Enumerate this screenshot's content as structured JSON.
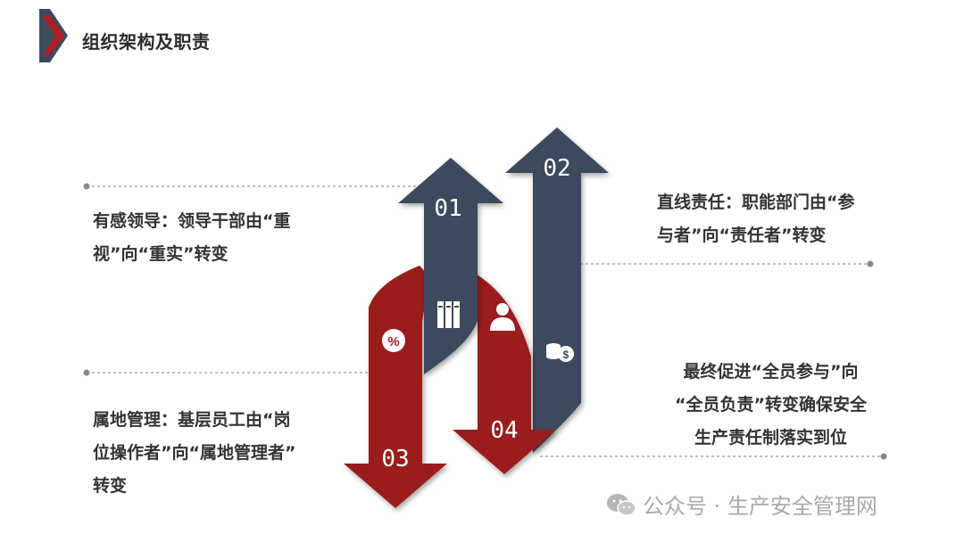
{
  "header": {
    "title": "组织架构及职责"
  },
  "arrows": {
    "labels": [
      "01",
      "02",
      "03",
      "04"
    ],
    "icons": [
      "binders-icon",
      "person-icon",
      "coins-dollar-icon",
      "percent-icon"
    ],
    "colors": {
      "navy": "#3d4a5c",
      "red": "#9b1a1e",
      "dot_line": "#999999"
    }
  },
  "items": {
    "top_left": [
      "有感领导：领导干部由“重",
      "视”向“重实”转变"
    ],
    "top_right": [
      "直线责任：职能部门由“参",
      "与者”向“责任者”转变"
    ],
    "bottom_left": [
      "属地管理：基层员工由“岗",
      "位操作者”向“属地管理者”",
      "转变"
    ],
    "bottom_right": [
      "最终促进“全员参与”向",
      "“全员负责”转变确保安全",
      "生产责任制落实到位"
    ]
  },
  "watermark": {
    "text": "公众号 · 生产安全管理网"
  }
}
